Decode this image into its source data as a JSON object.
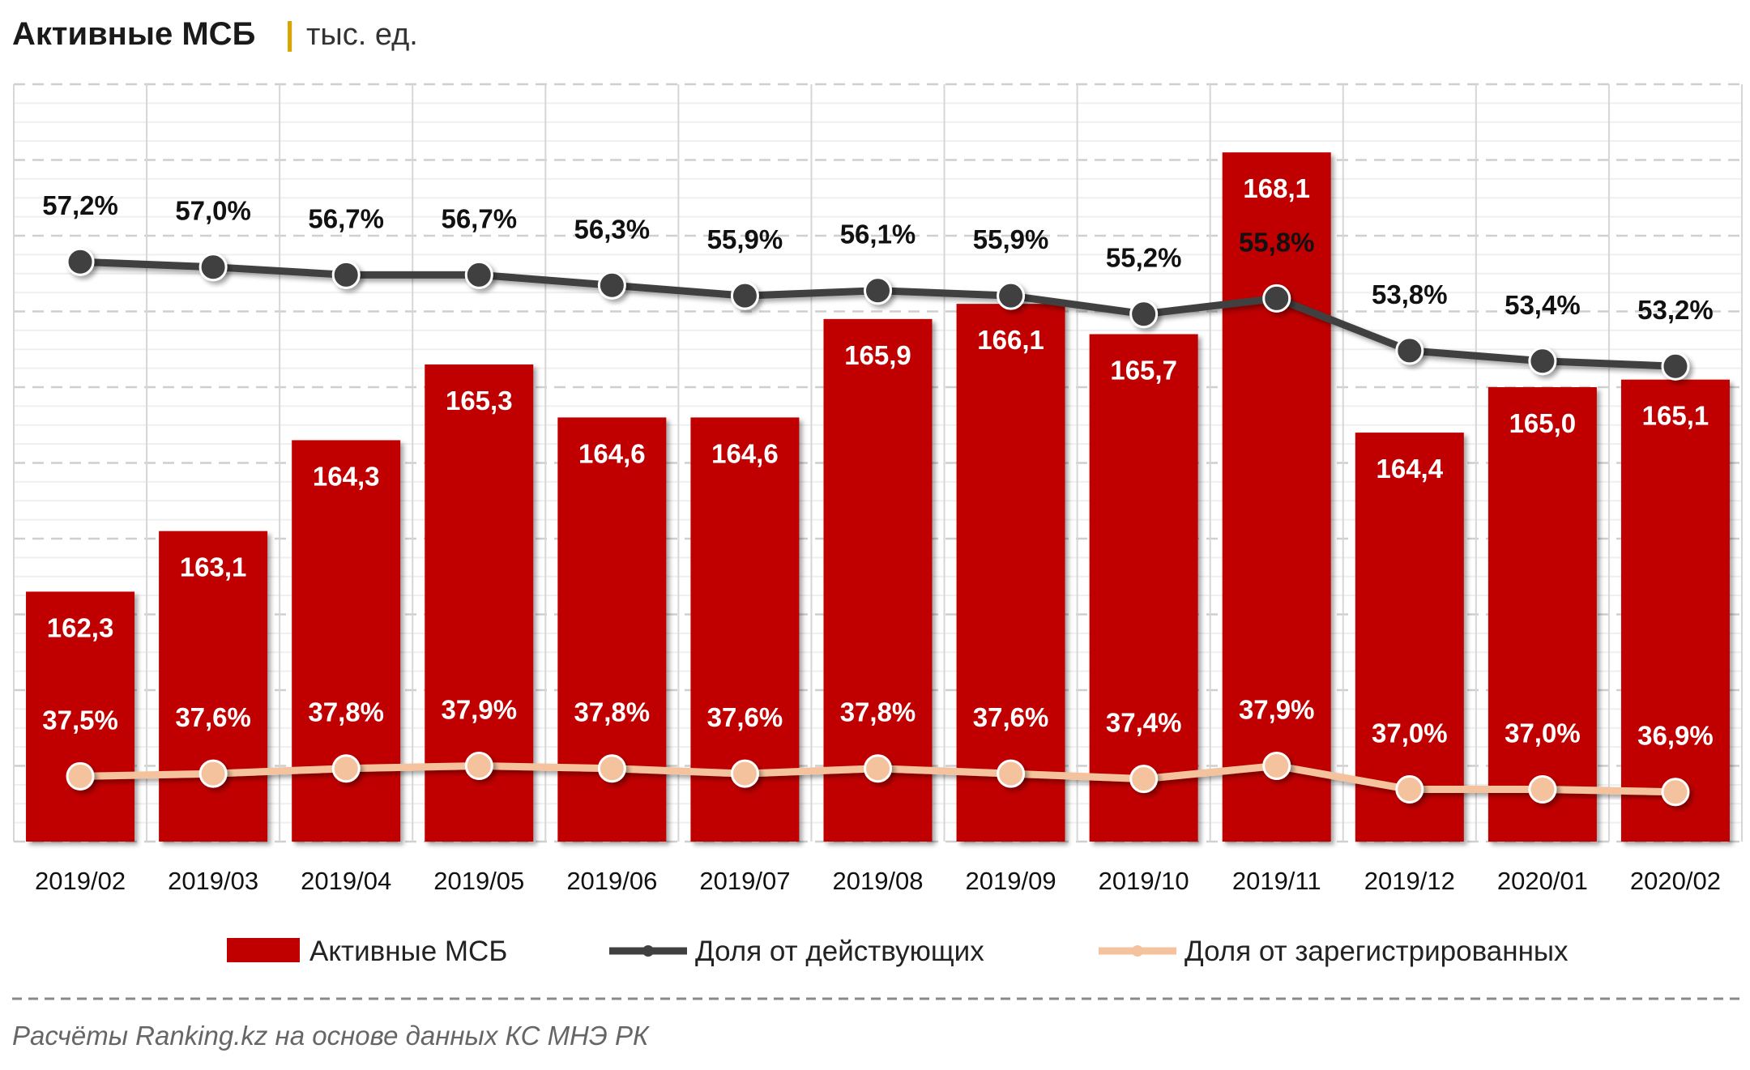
{
  "chart_data": {
    "type": "bar+line",
    "title": "Активные МСБ",
    "unit": "тыс. ед.",
    "categories": [
      "2019/02",
      "2019/03",
      "2019/04",
      "2019/05",
      "2019/06",
      "2019/07",
      "2019/08",
      "2019/09",
      "2019/10",
      "2019/11",
      "2019/12",
      "2020/01",
      "2020/02"
    ],
    "series": [
      {
        "name": "Активные МСБ",
        "type": "bar",
        "axis": "primary",
        "color": "#C00000",
        "values": [
          162.3,
          163.1,
          164.3,
          165.3,
          164.6,
          164.6,
          165.9,
          166.1,
          165.7,
          168.1,
          164.4,
          165.0,
          165.1
        ],
        "labels": [
          "162,3",
          "163,1",
          "164,3",
          "165,3",
          "164,6",
          "164,6",
          "165,9",
          "166,1",
          "165,7",
          "168,1",
          "164,4",
          "165,0",
          "165,1"
        ]
      },
      {
        "name": "Доля от действующих",
        "type": "line",
        "axis": "secondary",
        "color": "#404040",
        "values": [
          57.2,
          57.0,
          56.7,
          56.7,
          56.3,
          55.9,
          56.1,
          55.9,
          55.2,
          55.8,
          53.8,
          53.4,
          53.2
        ],
        "labels": [
          "57,2%",
          "57,0%",
          "56,7%",
          "56,7%",
          "56,3%",
          "55,9%",
          "56,1%",
          "55,9%",
          "55,2%",
          "55,8%",
          "53,8%",
          "53,4%",
          "53,2%"
        ]
      },
      {
        "name": "Доля от зарегистрированных",
        "type": "line",
        "axis": "secondary",
        "color": "#F4C39E",
        "values": [
          37.5,
          37.6,
          37.8,
          37.9,
          37.8,
          37.6,
          37.8,
          37.6,
          37.4,
          37.9,
          37.0,
          37.0,
          36.9
        ],
        "labels": [
          "37,5%",
          "37,6%",
          "37,8%",
          "37,9%",
          "37,8%",
          "37,6%",
          "37,8%",
          "37,6%",
          "37,4%",
          "37,9%",
          "37,0%",
          "37,0%",
          "36,9%"
        ]
      }
    ],
    "ylim": [
      159,
      169
    ],
    "y2lim": [
      35,
      64
    ],
    "grid": true,
    "legend": "bottom"
  },
  "source": "Расчёты Ranking.kz на основе данных КС МНЭ РК"
}
